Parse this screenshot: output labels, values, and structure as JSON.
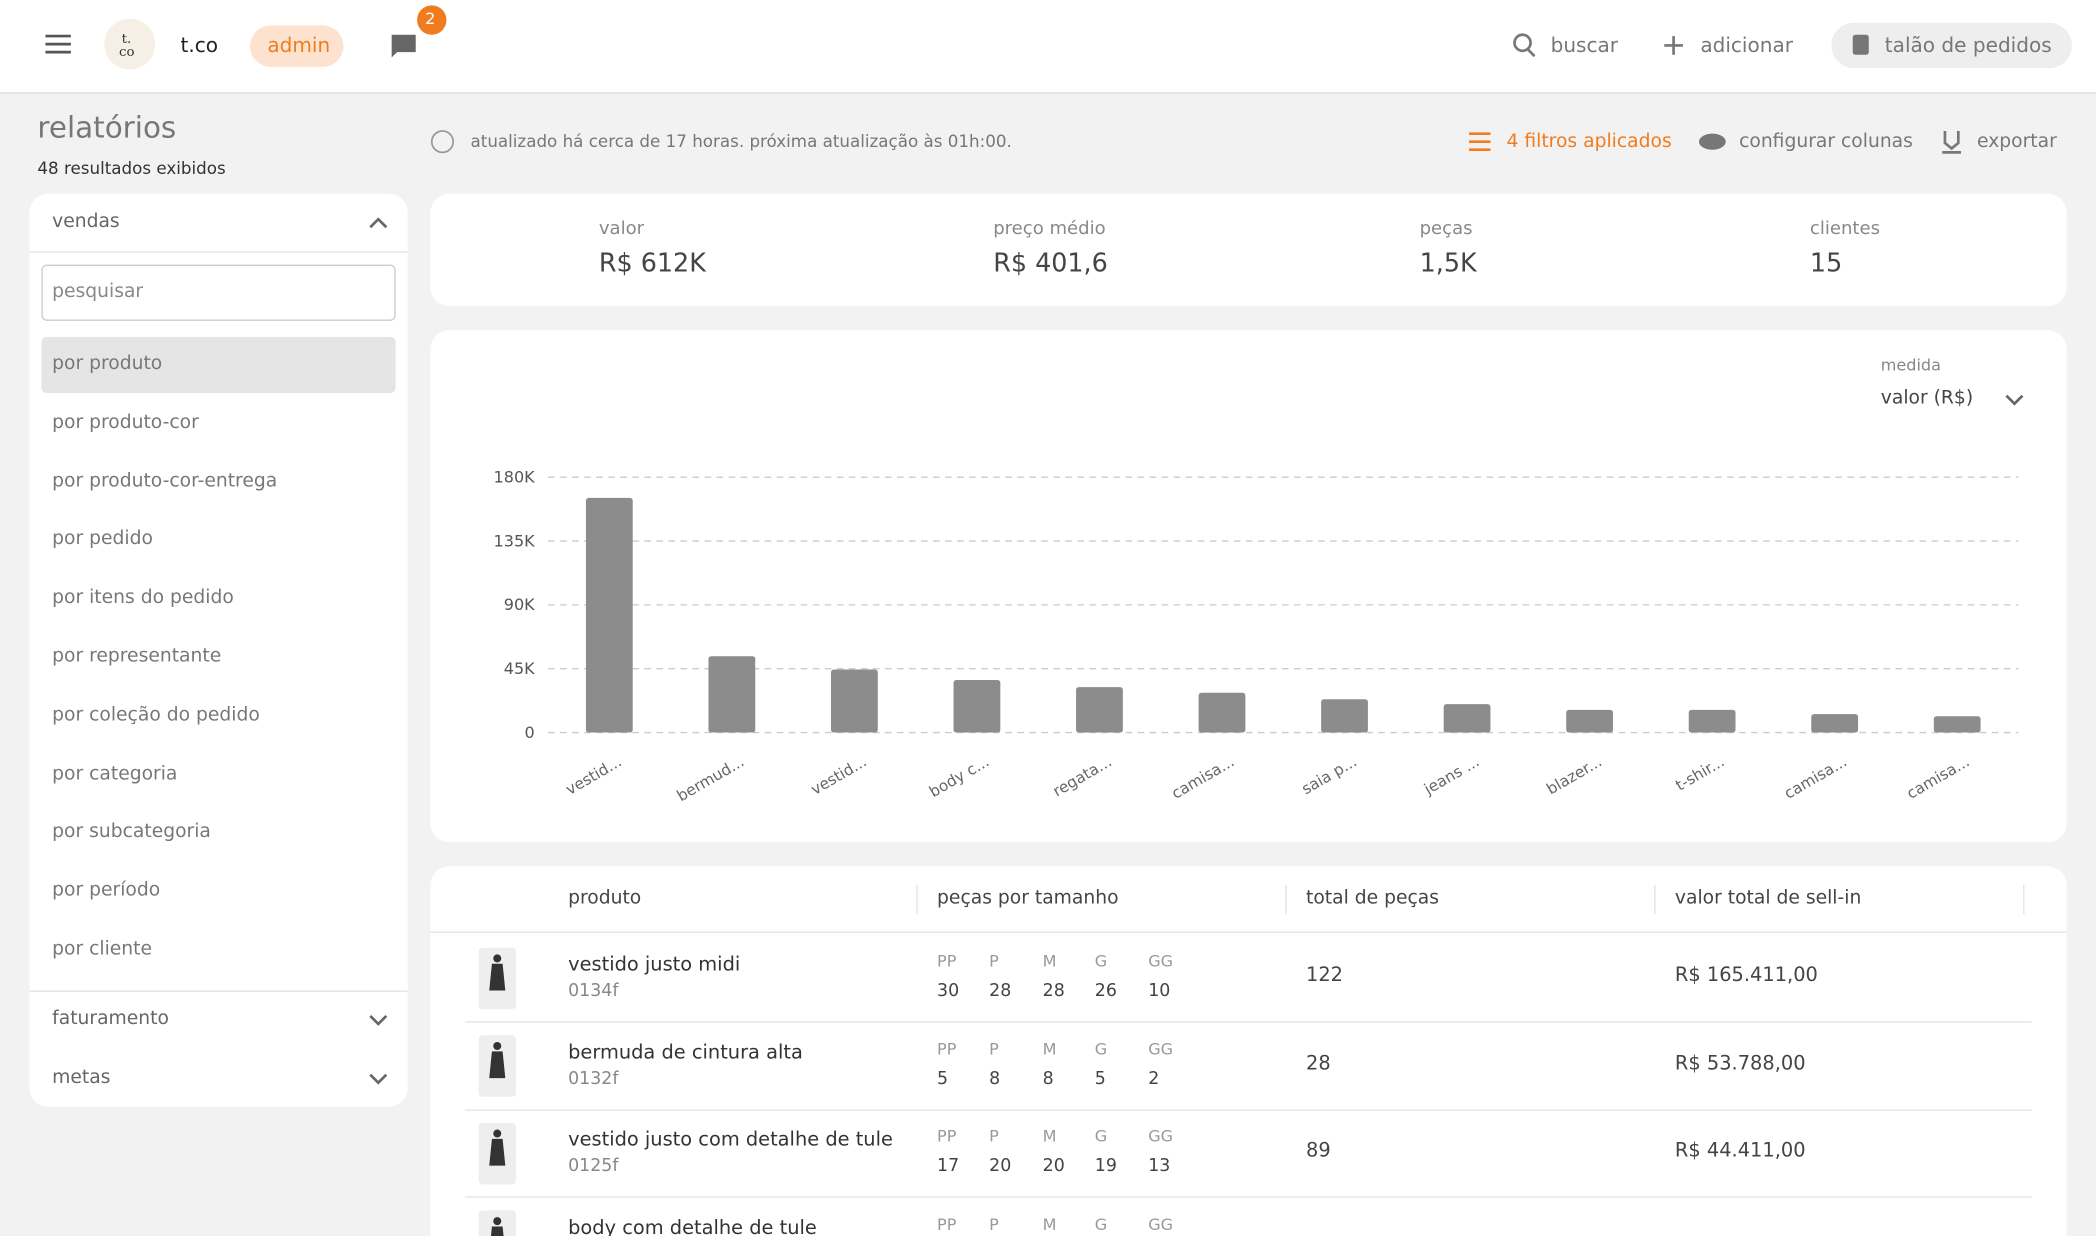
{
  "header": {
    "brand": "t.co",
    "logo_top": "t.",
    "logo_bottom": "co",
    "role": "admin",
    "notifications": "2",
    "search": "buscar",
    "add": "adicionar",
    "orders": "talão de pedidos"
  },
  "page": {
    "title": "relatórios",
    "subtitle": "48 resultados exibidos",
    "update_info": "atualizado há cerca de 17 horas. próxima atualização às 01h:00.",
    "filters": "4 filtros aplicados",
    "configure": "configurar colunas",
    "export": "exportar"
  },
  "sidebar": {
    "section": "vendas",
    "search_placeholder": "pesquisar",
    "items": [
      "por produto",
      "por produto-cor",
      "por produto-cor-entrega",
      "por pedido",
      "por itens do pedido",
      "por representante",
      "por coleção do pedido",
      "por categoria",
      "por subcategoria",
      "por período",
      "por cliente"
    ],
    "sections": [
      "faturamento",
      "metas"
    ]
  },
  "summary": [
    {
      "label": "valor",
      "value": "R$ 612K"
    },
    {
      "label": "preço médio",
      "value": "R$ 401,6"
    },
    {
      "label": "peças",
      "value": "1,5K"
    },
    {
      "label": "clientes",
      "value": "15"
    }
  ],
  "chart_data": {
    "type": "bar",
    "measure_label": "medida",
    "measure": "valor (R$)",
    "categories": [
      "vestid...",
      "bermud...",
      "vestid...",
      "body c...",
      "regata...",
      "camisa...",
      "saia p...",
      "jeans ...",
      "blazer...",
      "t-shir...",
      "camisa...",
      "camisa..."
    ],
    "values": [
      165411,
      53788,
      44411,
      37000,
      32000,
      28000,
      23500,
      20000,
      16000,
      16000,
      13000,
      11500
    ],
    "color": "#8c8c8c",
    "ylim": [
      0,
      180000
    ],
    "yticks": [
      0,
      {
        "value": 45000,
        "label": "45K"
      },
      {
        "value": 90000,
        "label": "90K"
      },
      {
        "value": 135000,
        "label": "135K"
      },
      {
        "value": 180000,
        "label": "180K"
      }
    ],
    "grid": true
  },
  "table": {
    "columns": [
      "produto",
      "peças por tamanho",
      "total de peças",
      "valor total de sell-in"
    ],
    "sizes": [
      "PP",
      "P",
      "M",
      "G",
      "GG"
    ],
    "rows": [
      {
        "name": "vestido justo midi",
        "code": "0134f",
        "sizes": [
          30,
          28,
          28,
          26,
          10
        ],
        "total": 122,
        "value": "R$ 165.411,00"
      },
      {
        "name": "bermuda de cintura alta",
        "code": "0132f",
        "sizes": [
          5,
          8,
          8,
          5,
          2
        ],
        "total": 28,
        "value": "R$ 53.788,00"
      },
      {
        "name": "vestido justo com detalhe de tule",
        "code": "0125f",
        "sizes": [
          17,
          20,
          20,
          19,
          13
        ],
        "total": 89,
        "value": "R$ 44.411,00"
      },
      {
        "name": "body com detalhe de tule"
      }
    ]
  }
}
